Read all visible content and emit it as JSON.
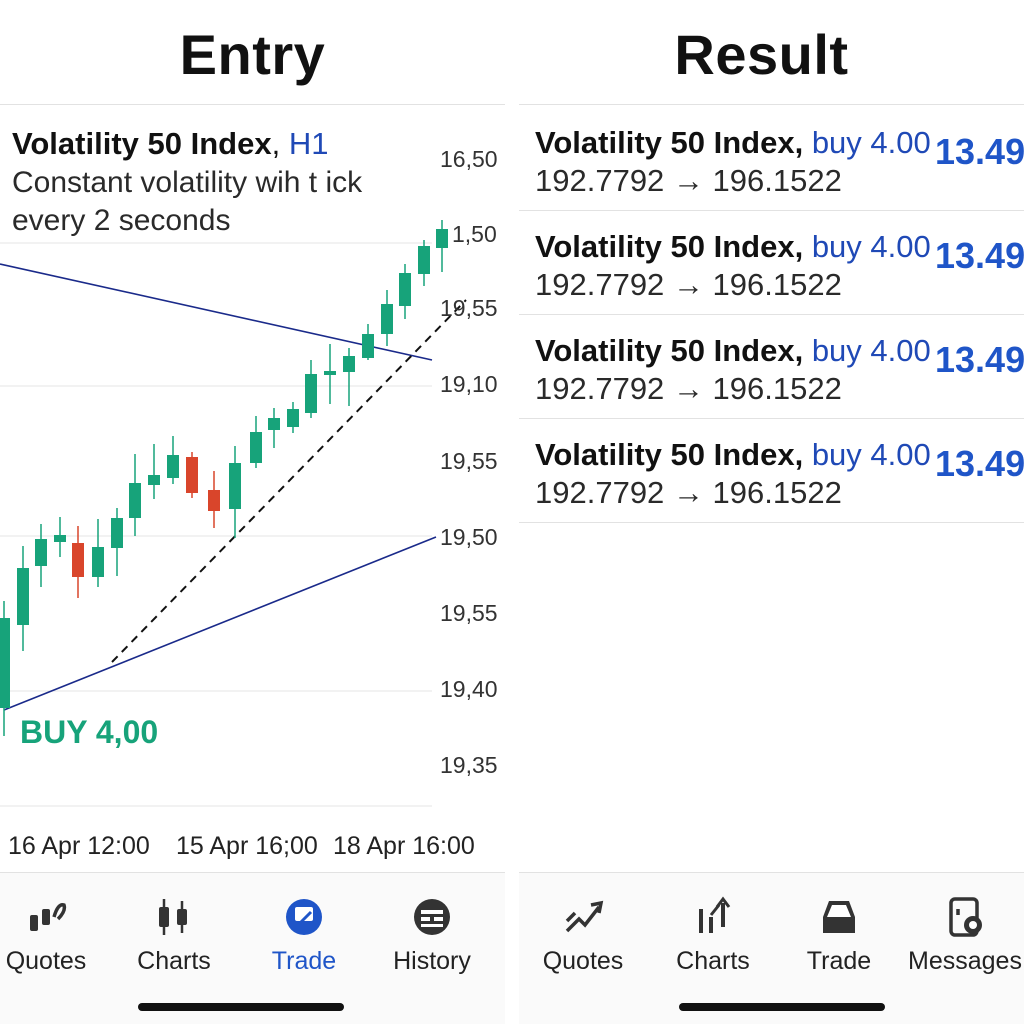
{
  "left": {
    "title": "Entry",
    "chart": {
      "symbol": "Volatility 50 Index",
      "separator": ", ",
      "timeframe": "H1",
      "description": "Constant volatility wih t ick every 2 seconds",
      "trade_label": "BUY 4,00",
      "price_labels": [
        "16,50",
        "1,50",
        "19,55",
        "19,10",
        "19,55",
        "19,50",
        "19,55",
        "19,40",
        "19,35"
      ],
      "time_labels": [
        "16 Apr 12:00",
        "15 Apr 16;00",
        "18 Apr 16:00"
      ],
      "colors": {
        "bull": "#17a37a",
        "bear": "#d9452b",
        "trendline": "#1a2a8a",
        "dashed": "#111111"
      }
    },
    "nav": [
      {
        "label": "Quotes",
        "icon": "quotes-icon"
      },
      {
        "label": "Charts",
        "icon": "charts-icon"
      },
      {
        "label": "Trade",
        "icon": "trade-icon",
        "active": true
      },
      {
        "label": "History",
        "icon": "history-icon"
      }
    ]
  },
  "right": {
    "title": "Result",
    "results": [
      {
        "symbol": "Volatility 50 Index,",
        "side": "buy 4.00",
        "prices": "192.7792 → 196.1522",
        "profit": "13.49"
      },
      {
        "symbol": "Volatility 50 Index,",
        "side": "buy 4.00",
        "prices": "192.7792 → 196.1522",
        "profit": "13.49"
      },
      {
        "symbol": "Volatility 50 Index,",
        "side": "buy 4.00",
        "prices": "192.7792 → 196.1522",
        "profit": "13.49"
      },
      {
        "symbol": "Volatility 50 Index,",
        "side": "buy 4.00",
        "prices": "192.7792 → 196.1522",
        "profit": "13.49"
      }
    ],
    "nav": [
      {
        "label": "Quotes",
        "icon": "quotes-icon"
      },
      {
        "label": "Charts",
        "icon": "charts-icon"
      },
      {
        "label": "Trade",
        "icon": "trade-icon"
      },
      {
        "label": "Messages",
        "icon": "messages-icon"
      }
    ]
  },
  "theme": {
    "accent": "#1f55c8",
    "bull": "#17a37a",
    "bear": "#d9452b"
  }
}
